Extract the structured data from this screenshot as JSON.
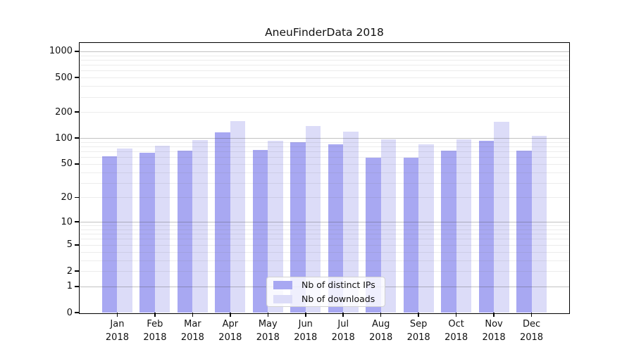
{
  "figure": {
    "background": "#ffffff"
  },
  "chart_data": {
    "type": "bar",
    "title": "AneuFinderData 2018",
    "categories": [
      "Jan",
      "Feb",
      "Mar",
      "Apr",
      "May",
      "Jun",
      "Jul",
      "Aug",
      "Sep",
      "Oct",
      "Nov",
      "Dec"
    ],
    "category_year": "2018",
    "series": [
      {
        "name": "Nb of distinct IPs",
        "color": "#a8a8f2",
        "values": [
          61,
          68,
          71,
          117,
          73,
          90,
          84,
          59,
          59,
          71,
          93,
          71
        ]
      },
      {
        "name": "Nb of downloads",
        "color": "#dcdcf8",
        "values": [
          75,
          82,
          95,
          158,
          93,
          139,
          119,
          97,
          84,
          97,
          155,
          106
        ]
      }
    ],
    "yscale": "log1p",
    "ylim": [
      0,
      1250
    ],
    "yticks": [
      0,
      1,
      2,
      5,
      10,
      20,
      50,
      100,
      200,
      500,
      1000
    ],
    "grid": true,
    "legend_position": "bottom-center",
    "spine_color": "#000000",
    "major_grid_color": "#c6c6c6",
    "minor_grid_color": "#e9e9e9"
  }
}
